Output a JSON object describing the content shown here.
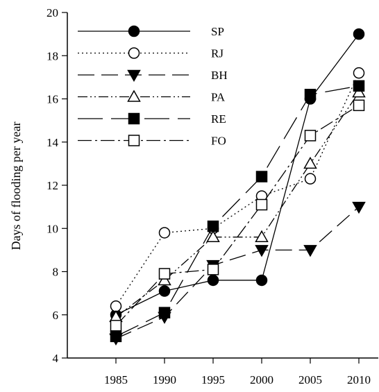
{
  "chart_data": {
    "type": "line",
    "title": "",
    "xlabel": "",
    "ylabel": "Days of flooding per year",
    "x": [
      1985,
      1990,
      1995,
      2000,
      2005,
      2010
    ],
    "xlim": [
      1980,
      2012
    ],
    "ylim": [
      4,
      20
    ],
    "xticks": [
      "1985",
      "1990",
      "1995",
      "2000",
      "2005",
      "2010"
    ],
    "yticks": [
      "4",
      "6",
      "8",
      "10",
      "12",
      "14",
      "16",
      "18",
      "20"
    ],
    "grid": false,
    "legend_position": "top-left",
    "series": [
      {
        "name": "SP",
        "marker": "circle-filled",
        "dash": "solid",
        "values": [
          6.0,
          7.1,
          7.6,
          7.6,
          16.0,
          19.0
        ]
      },
      {
        "name": "RJ",
        "marker": "circle-open",
        "dash": "dotted",
        "values": [
          6.4,
          9.8,
          10.0,
          11.5,
          12.3,
          17.2
        ]
      },
      {
        "name": "BH",
        "marker": "triangle-down-filled",
        "dash": "dashed",
        "values": [
          4.9,
          5.9,
          8.3,
          9.0,
          9.0,
          11.0
        ]
      },
      {
        "name": "PA",
        "marker": "triangle-up-open",
        "dash": "dash-dot-dot",
        "values": [
          5.9,
          7.6,
          9.6,
          9.6,
          13.0,
          16.3
        ]
      },
      {
        "name": "RE",
        "marker": "square-filled",
        "dash": "long-dash",
        "values": [
          5.0,
          6.1,
          10.1,
          12.4,
          16.2,
          16.6
        ]
      },
      {
        "name": "FO",
        "marker": "square-open",
        "dash": "dash-dot",
        "values": [
          5.5,
          7.9,
          8.1,
          11.1,
          14.3,
          15.7
        ]
      }
    ]
  }
}
